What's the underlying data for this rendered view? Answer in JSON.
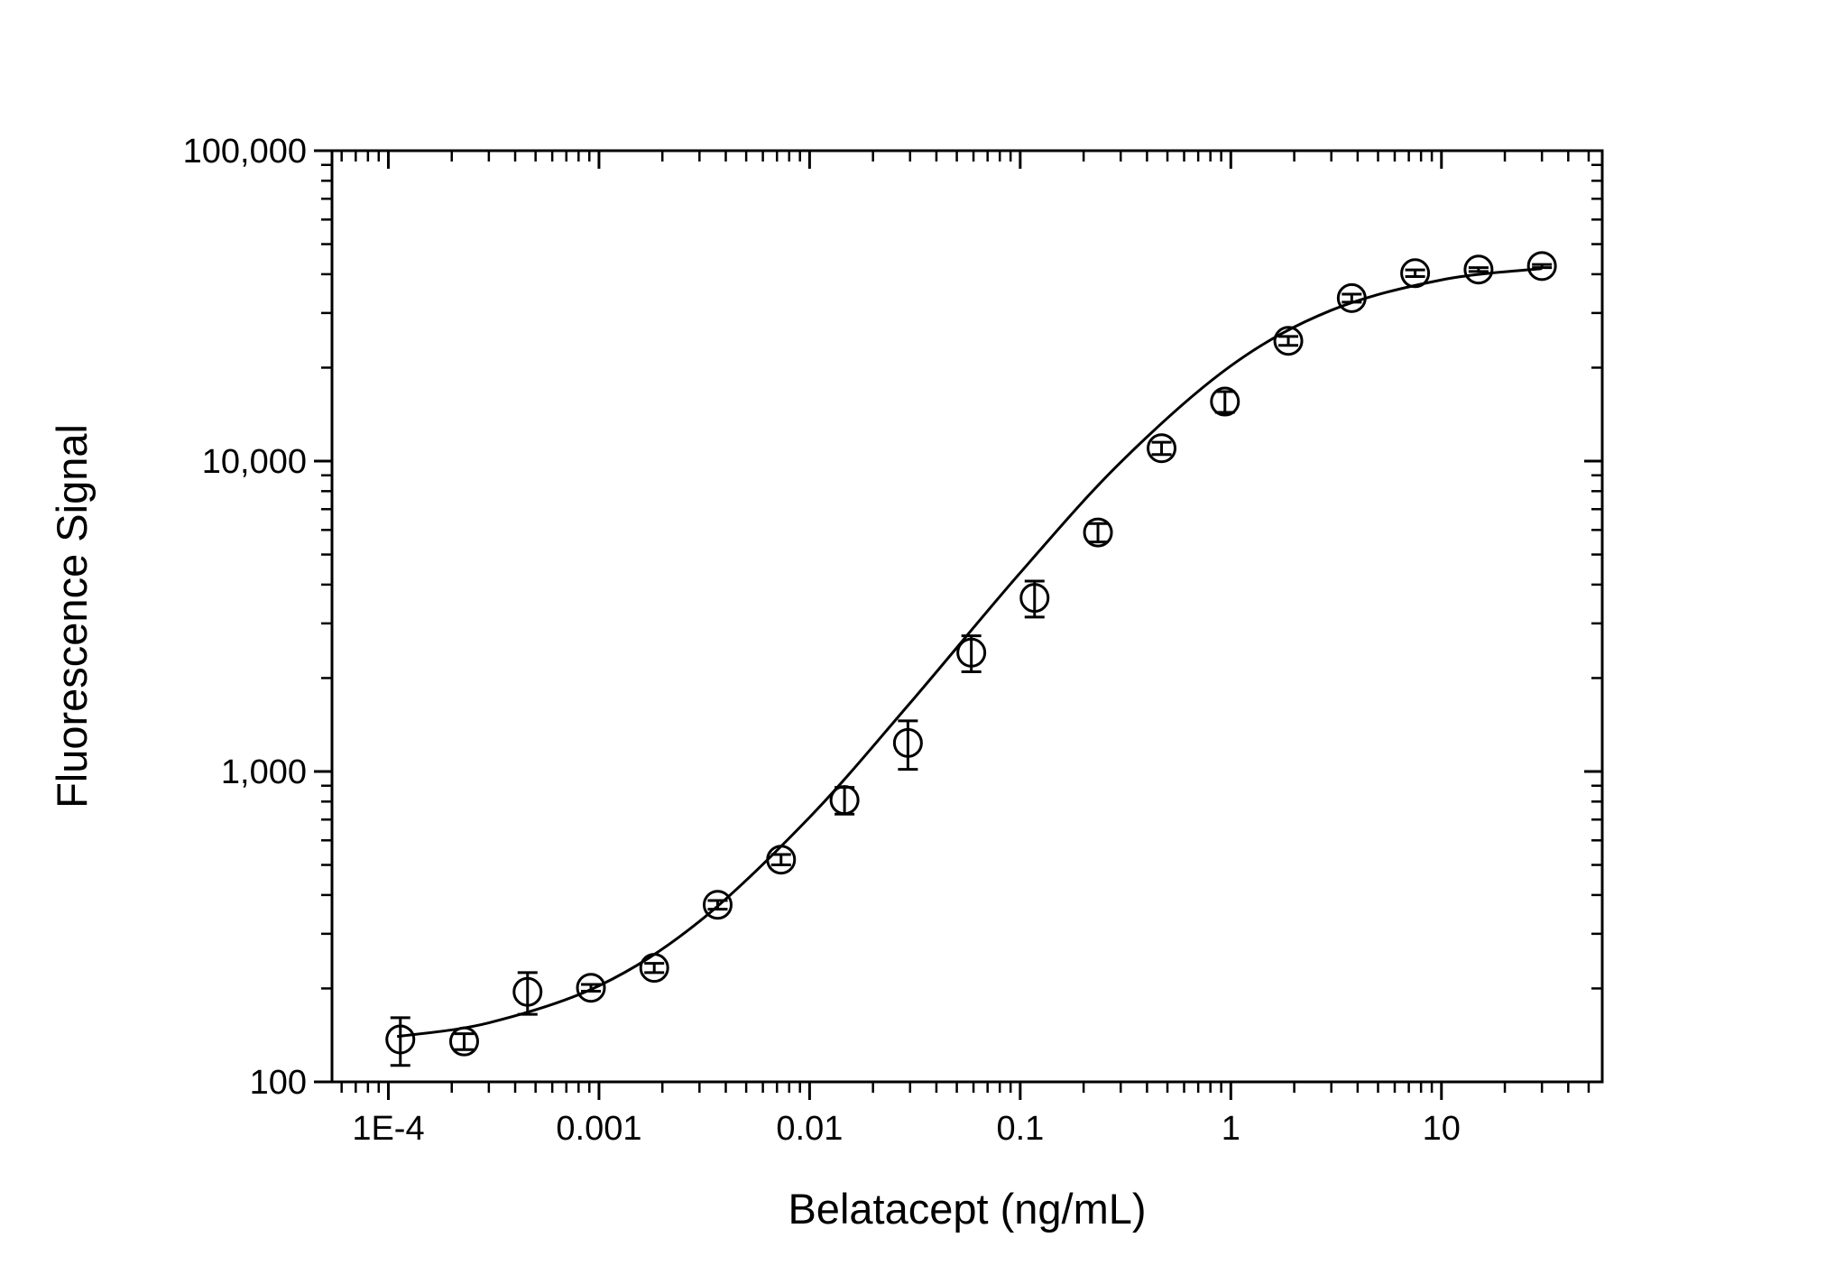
{
  "chart_data": {
    "type": "scatter",
    "xlabel": "Belatacept (ng/mL)",
    "ylabel": "Fluorescence Signal",
    "xlog": true,
    "ylog": true,
    "minor_ticks": true,
    "xlim": [
      5.4e-05,
      58
    ],
    "ylim": [
      100,
      100000
    ],
    "xticks": [
      {
        "value": 0.0001,
        "label": "1E-4"
      },
      0.001,
      0.01,
      0.1,
      1,
      10
    ],
    "yticks": [
      100,
      {
        "value": 1000,
        "label": "1,000"
      },
      {
        "value": 10000,
        "label": "10,000"
      },
      {
        "value": 100000,
        "label": "100,000"
      }
    ],
    "series": [
      {
        "color": "#000000",
        "x": [
          0.000114,
          0.000229,
          0.000458,
          0.000916,
          0.00183,
          0.00366,
          0.00732,
          0.01465,
          0.0293,
          0.0586,
          0.117,
          0.234,
          0.469,
          0.9375,
          1.875,
          3.75,
          7.5,
          15,
          30
        ],
        "values": [
          137,
          135,
          195,
          201,
          233,
          372,
          520,
          809,
          1236,
          2415,
          3625,
          5890,
          11000,
          15550,
          24400,
          33500,
          40300,
          41400,
          42500
        ],
        "errors": [
          24,
          8,
          30,
          5,
          8,
          12,
          20,
          80,
          220,
          320,
          480,
          400,
          500,
          1200,
          800,
          1000,
          1000,
          600,
          500
        ]
      }
    ],
    "fit": {
      "color": "#000000",
      "x": [
        0.00011,
        0.0003,
        0.001,
        0.003,
        0.01,
        0.03,
        0.1,
        0.3,
        1,
        3,
        10,
        30
      ],
      "values": [
        140,
        155,
        204,
        329,
        712,
        1662,
        4366,
        9913,
        20267,
        30620,
        38340,
        41700
      ]
    }
  }
}
